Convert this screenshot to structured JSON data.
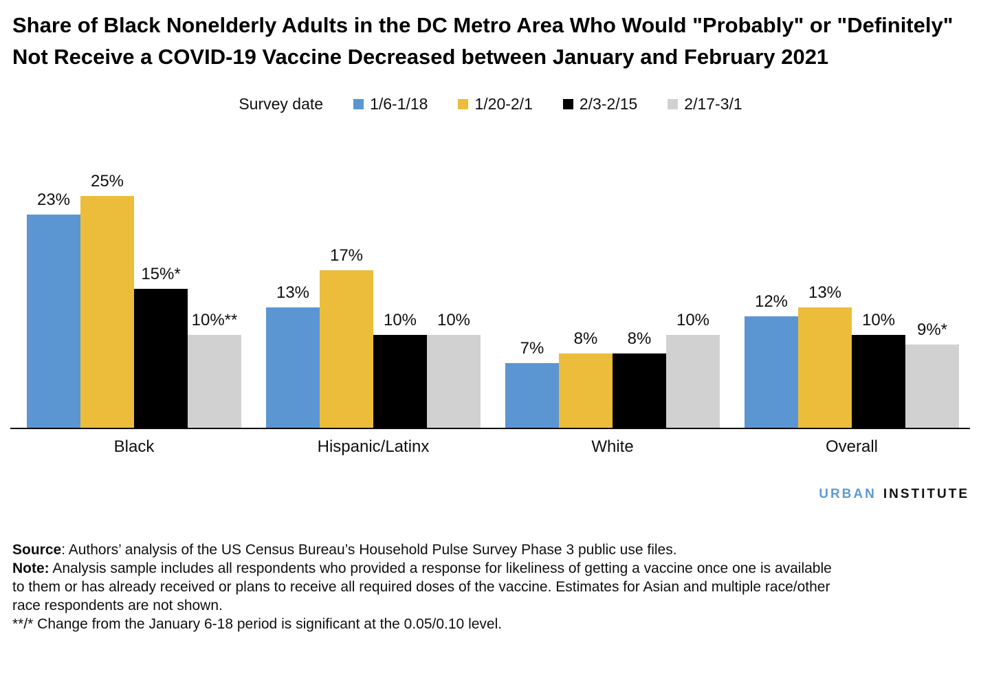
{
  "title": "Share of Black Nonelderly Adults in the DC Metro Area Who Would \"Probably\" or \"Definitely\" Not Receive a COVID-19 Vaccine Decreased between January and February 2021",
  "legend": {
    "label": "Survey date",
    "items": [
      {
        "name": "1/6-1/18",
        "color": "#5B96D2"
      },
      {
        "name": "1/20-2/1",
        "color": "#ECBD3B"
      },
      {
        "name": "2/3-2/15",
        "color": "#000000"
      },
      {
        "name": "2/17-3/1",
        "color": "#D1D1D1"
      }
    ]
  },
  "chart_data": {
    "type": "bar",
    "title": "Share of Black Nonelderly Adults in the DC Metro Area Who Would \"Probably\" or \"Definitely\" Not Receive a COVID-19 Vaccine Decreased between January and February 2021",
    "categories": [
      "Black",
      "Hispanic/Latinx",
      "White",
      "Overall"
    ],
    "series": [
      {
        "name": "1/6-1/18",
        "color": "#5B96D2",
        "values": [
          23,
          13,
          7,
          12
        ],
        "labels": [
          "23%",
          "13%",
          "7%",
          "12%"
        ]
      },
      {
        "name": "1/20-2/1",
        "color": "#ECBD3B",
        "values": [
          25,
          17,
          8,
          13
        ],
        "labels": [
          "25%",
          "17%",
          "8%",
          "13%"
        ]
      },
      {
        "name": "2/3-2/15",
        "color": "#000000",
        "values": [
          15,
          10,
          8,
          10
        ],
        "labels": [
          "15%*",
          "10%",
          "8%",
          "10%"
        ]
      },
      {
        "name": "2/17-3/1",
        "color": "#D1D1D1",
        "values": [
          10,
          10,
          10,
          9
        ],
        "labels": [
          "10%**",
          "10%",
          "10%",
          "9%*"
        ]
      }
    ],
    "xlabel": "",
    "ylabel": "",
    "ylim": [
      0,
      25
    ],
    "value_unit": "%",
    "grid": false,
    "legend_label": "Survey date",
    "legend_position": "top"
  },
  "branding": {
    "urban": "URBAN",
    "institute": "INSTITUTE",
    "urban_color": "#5C9BD3"
  },
  "notes": {
    "source_label": "Source",
    "source_text": ": Authors’ analysis of the US Census Bureau’s Household Pulse Survey Phase 3 public use files.",
    "note_label": "Note:",
    "note_text": " Analysis sample includes all respondents who provided a response for likeliness of getting a vaccine once one is available to them or has already received or plans to receive all required doses of the vaccine.  Estimates for Asian and multiple race/other race respondents are not shown.",
    "significance_text": "**/* Change from the January 6-18 period is significant at the 0.05/0.10 level."
  }
}
